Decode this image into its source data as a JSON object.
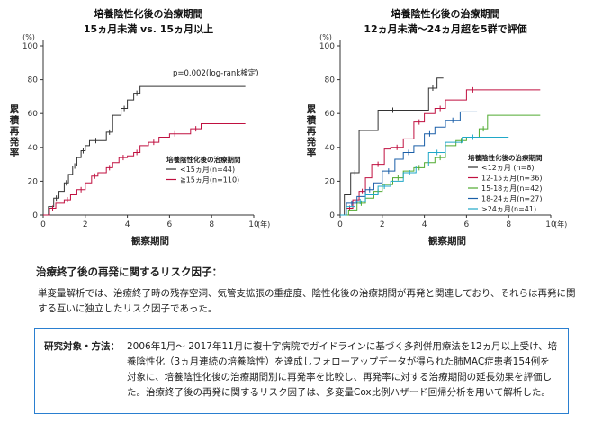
{
  "chart_data": [
    {
      "type": "line",
      "subtype": "kaplan-meier",
      "title": "培養陰性化後の治療期間",
      "subtitle": "15ヵ月未満 vs. 15ヵ月以上",
      "ylabel": "累積再発率",
      "yunit": "(%)",
      "xlabel": "観察期間",
      "xunit": "(年)",
      "xlim": [
        0,
        10
      ],
      "ylim": [
        0,
        100
      ],
      "xticks": [
        0,
        2,
        4,
        6,
        8,
        10
      ],
      "yticks": [
        0,
        20,
        40,
        60,
        80,
        100
      ],
      "annotation": "p=0.002(log-rank検定)",
      "legend_title": "培養陰性化後の治療期間",
      "legend_position": "center-right",
      "series": [
        {
          "name": "<15ヵ月(n=44)",
          "color": "#333333",
          "x": [
            0,
            0.25,
            0.5,
            0.75,
            1.0,
            1.2,
            1.4,
            1.6,
            1.8,
            2.0,
            2.2,
            2.8,
            3.0,
            3.3,
            3.7,
            4.0,
            4.3,
            4.6,
            9.6
          ],
          "y": [
            0,
            5,
            10,
            14,
            19,
            24,
            29,
            34,
            38,
            41,
            44,
            44,
            49,
            59,
            63,
            68,
            72,
            76,
            76
          ]
        },
        {
          "name": "≧15ヵ月(n=110)",
          "color": "#c01040",
          "x": [
            0,
            0.3,
            0.6,
            1.0,
            1.3,
            1.6,
            2.0,
            2.3,
            2.6,
            3.0,
            3.3,
            3.6,
            4.0,
            4.3,
            4.6,
            5.0,
            5.5,
            6.0,
            6.5,
            7.0,
            7.5,
            9.6
          ],
          "y": [
            0,
            4,
            7,
            9,
            12,
            15,
            19,
            23,
            25,
            28,
            31,
            34,
            35,
            37,
            41,
            43,
            46,
            48,
            48,
            51,
            54,
            54
          ]
        }
      ]
    },
    {
      "type": "line",
      "subtype": "kaplan-meier",
      "title": "培養陰性化後の治療期間",
      "subtitle": "12ヵ月未満～24ヵ月超を5群で評価",
      "ylabel": "累積再発率",
      "yunit": "(%)",
      "xlabel": "観察期間",
      "xunit": "(年)",
      "xlim": [
        0,
        10
      ],
      "ylim": [
        0,
        100
      ],
      "xticks": [
        0,
        2,
        4,
        6,
        8,
        10
      ],
      "yticks": [
        0,
        20,
        40,
        60,
        80,
        100
      ],
      "legend_title": "培養陰性化後の治療期間",
      "legend_position": "center-right",
      "series": [
        {
          "name": "<12ヵ月 (n=8)",
          "color": "#333333",
          "x": [
            0,
            0.2,
            0.5,
            0.9,
            1.8,
            3.2,
            4.2,
            4.6,
            4.9
          ],
          "y": [
            0,
            12,
            25,
            50,
            62,
            62,
            75,
            81,
            81
          ]
        },
        {
          "name": "12-15ヵ月(n=36)",
          "color": "#c01040",
          "x": [
            0,
            0.3,
            0.6,
            0.9,
            1.2,
            1.5,
            2.1,
            2.4,
            3.0,
            3.5,
            4.0,
            4.5,
            5.0,
            6.0,
            6.6,
            9.5
          ],
          "y": [
            0,
            4,
            9,
            14,
            22,
            30,
            39,
            40,
            45,
            55,
            60,
            63,
            68,
            74,
            74,
            74
          ]
        },
        {
          "name": "15-18ヵ月(n=42)",
          "color": "#50aa30",
          "x": [
            0,
            0.4,
            0.8,
            1.2,
            1.6,
            2.0,
            2.5,
            3.0,
            3.5,
            4.0,
            4.5,
            5.0,
            5.5,
            6.0,
            6.6,
            7.0,
            9.5
          ],
          "y": [
            0,
            3,
            7,
            10,
            14,
            18,
            22,
            26,
            28,
            31,
            34,
            41,
            44,
            46,
            51,
            59,
            59
          ]
        },
        {
          "name": "18-24ヵ月(n=27)",
          "color": "#1a5fa8",
          "x": [
            0,
            0.3,
            0.8,
            1.2,
            1.6,
            2.0,
            2.6,
            3.0,
            3.5,
            4.0,
            4.5,
            5.0,
            5.7,
            6.5
          ],
          "y": [
            0,
            7,
            11,
            15,
            19,
            26,
            33,
            37,
            41,
            48,
            52,
            56,
            61,
            61
          ]
        },
        {
          "name": ">24ヵ月(n=41)",
          "color": "#20a8c8",
          "x": [
            0,
            0.3,
            0.7,
            1.2,
            1.8,
            2.4,
            3.0,
            3.6,
            4.2,
            5.0,
            5.8,
            6.8,
            8.0
          ],
          "y": [
            0,
            5,
            8,
            12,
            17,
            20,
            25,
            29,
            37,
            43,
            46,
            46,
            46
          ]
        }
      ]
    }
  ],
  "risk": {
    "heading": "治療終了後の再発に関するリスク因子：",
    "body": "単変量解析では、治療終了時の残存空洞、気管支拡張の重症度、陰性化後の治療期間が再発と関連しており、それらは再発に関する互いに独立したリスク因子であった。"
  },
  "study": {
    "label": "研究対象・方法：",
    "text": "2006年1月～ 2017年11月に複十字病院でガイドラインに基づく多剤併用療法を12ヵ月以上受け、培養陰性化（3ヵ月連続の培養陰性）を達成しフォローアップデータが得られた肺MAC症患者154例を対象に、培養陰性化後の治療期間別に再発率を比較し、再発率に対する治療期間の延長効果を評価した。治療終了後の再発に関するリスク因子は、多変量Cox比例ハザード回帰分析を用いて解析した。"
  }
}
